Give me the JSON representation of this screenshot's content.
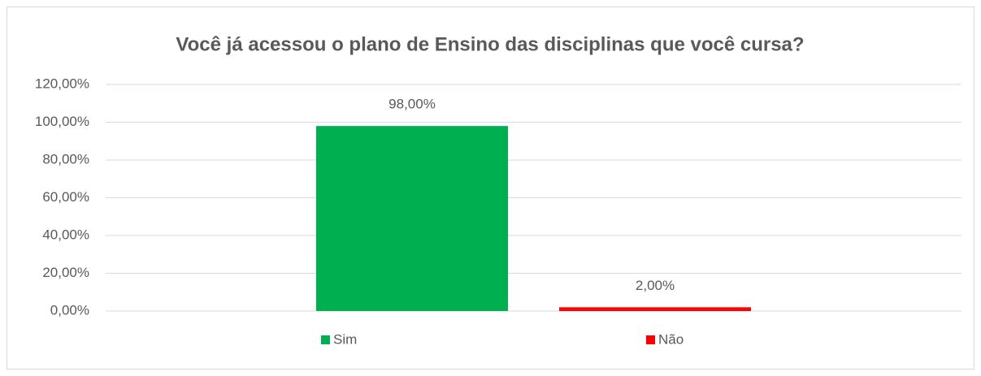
{
  "chart_data": {
    "type": "bar",
    "title": "Você já acessou o plano de Ensino das disciplinas que você cursa?",
    "categories": [
      null
    ],
    "series": [
      {
        "name": "Sim",
        "color": "#00b050",
        "values": [
          98
        ],
        "value_labels": [
          "98,00%"
        ]
      },
      {
        "name": "Não",
        "color": "#ff0000",
        "values": [
          2
        ],
        "value_labels": [
          "2,00%"
        ]
      }
    ],
    "ylim": [
      0,
      120
    ],
    "yticks": [
      {
        "value": 0,
        "label": "0,00%"
      },
      {
        "value": 20,
        "label": "20,00%"
      },
      {
        "value": 40,
        "label": "40,00%"
      },
      {
        "value": 60,
        "label": "60,00%"
      },
      {
        "value": 80,
        "label": "80,00%"
      },
      {
        "value": 100,
        "label": "100,00%"
      },
      {
        "value": 120,
        "label": "120,00%"
      }
    ],
    "grid": true,
    "legend": "bottom"
  }
}
